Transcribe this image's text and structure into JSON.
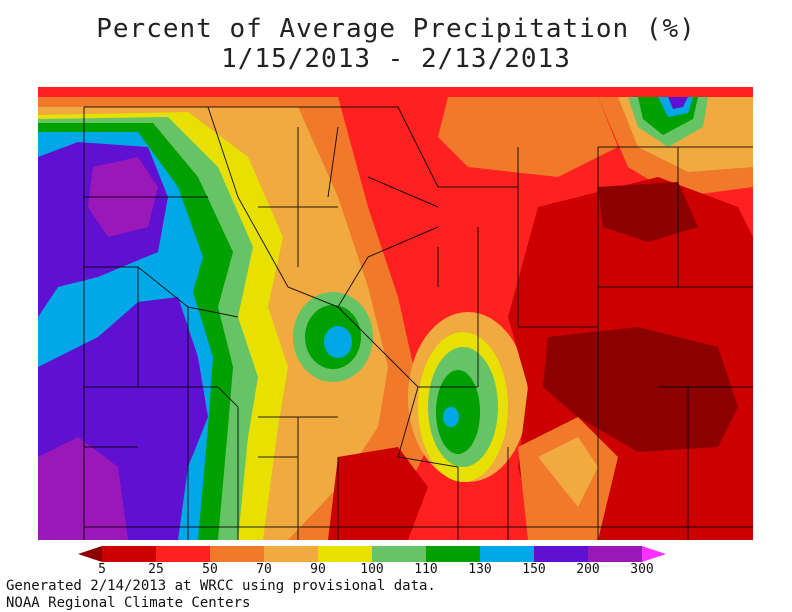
{
  "title": {
    "line1": "Percent of Average Precipitation (%)",
    "line2": "1/15/2013 - 2/13/2013"
  },
  "legend": {
    "ticks": [
      "5",
      "25",
      "50",
      "70",
      "90",
      "100",
      "110",
      "130",
      "150",
      "200",
      "300"
    ],
    "colors": [
      "#8c0000",
      "#cc0000",
      "#ff2020",
      "#f07a2a",
      "#f0aa40",
      "#e8e000",
      "#66c466",
      "#00a000",
      "#00a8e8",
      "#6010d0",
      "#9a18b8",
      "#ff30ff"
    ]
  },
  "footer": {
    "line1": "Generated 2/14/2013 at WRCC using provisional data.",
    "line2": "NOAA Regional Climate Centers"
  }
}
